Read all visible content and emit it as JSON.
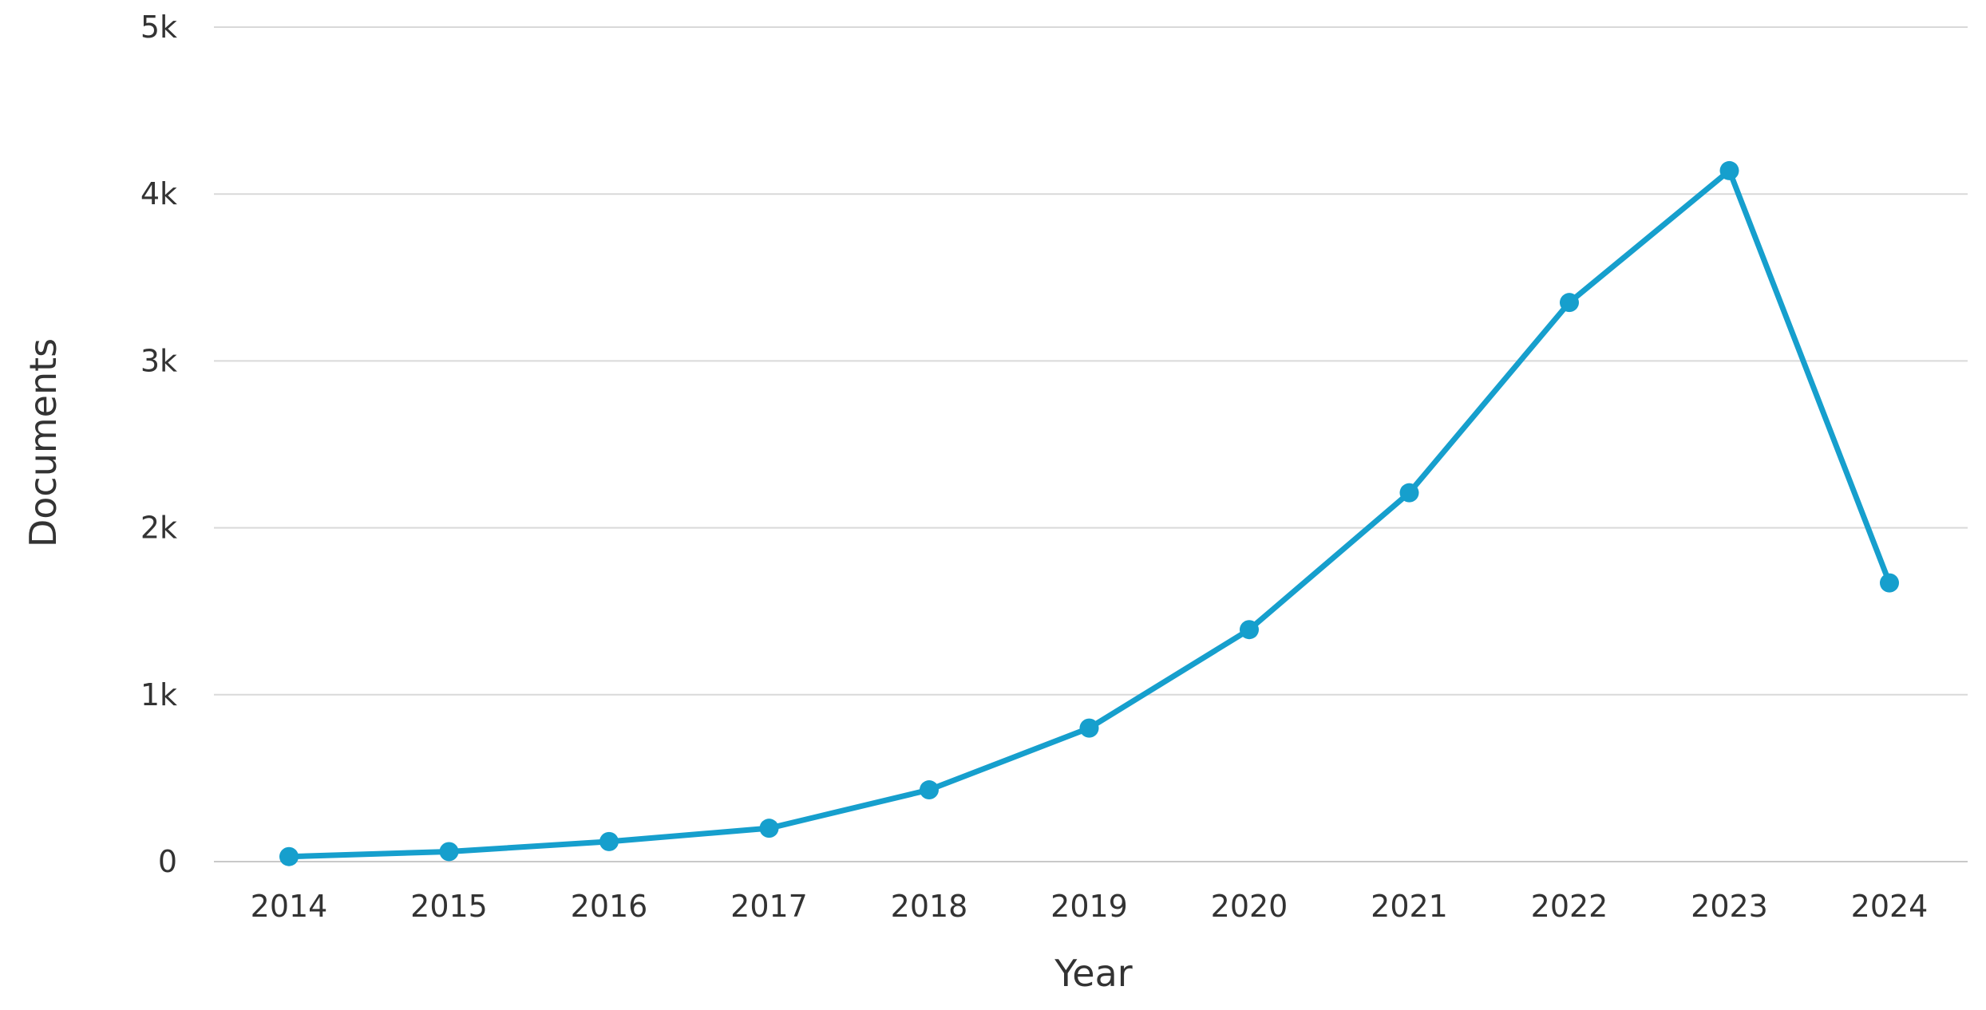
{
  "chart_data": {
    "type": "line",
    "title": "",
    "xlabel": "Year",
    "ylabel": "Documents",
    "x": [
      "2014",
      "2015",
      "2016",
      "2017",
      "2018",
      "2019",
      "2020",
      "2021",
      "2022",
      "2023",
      "2024"
    ],
    "series": [
      {
        "values": [
          30,
          60,
          120,
          200,
          430,
          800,
          1390,
          2210,
          3350,
          4140,
          1670
        ]
      }
    ],
    "ylim": [
      0,
      5000
    ],
    "y_ticks": [
      0,
      1000,
      2000,
      3000,
      4000,
      5000
    ],
    "y_tick_labels": [
      "0",
      "1k",
      "2k",
      "3k",
      "4k",
      "5k"
    ],
    "grid": true,
    "legend": "none",
    "colors": {
      "series": "#169FCD",
      "grid": "#d9d9d9",
      "text": "#333333"
    }
  }
}
